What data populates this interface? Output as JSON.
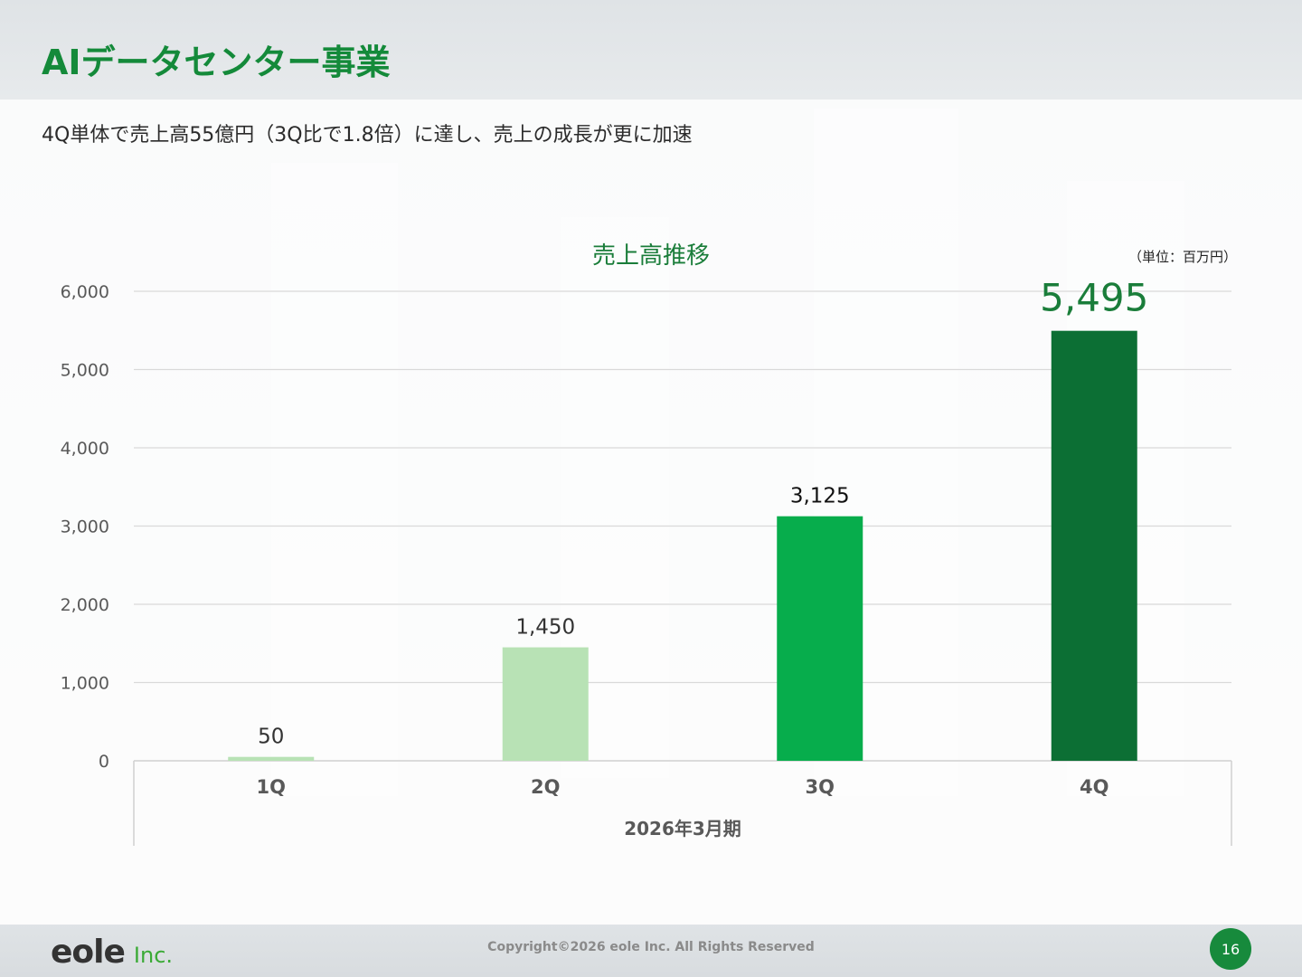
{
  "slide": {
    "title": "AIデータセンター事業",
    "subtitle": "4Q単体で売上高55億円（3Q比で1.8倍）に達し、売上の成長が更に加速",
    "page_number": "16"
  },
  "footer": {
    "logo_mark": "eole",
    "logo_suffix": "Inc.",
    "copyright": "Copyright©2026 eole Inc. All Rights Reserved"
  },
  "chart_data": {
    "type": "bar",
    "title": "売上高推移",
    "unit_note": "（単位：百万円）",
    "categories": [
      "1Q",
      "2Q",
      "3Q",
      "4Q"
    ],
    "values": [
      50,
      1450,
      3125,
      5495
    ],
    "value_labels": [
      "50",
      "1,450",
      "3,125",
      "5,495"
    ],
    "xlabel": "2026年3月期",
    "ylabel": "",
    "ylim": [
      0,
      6000
    ],
    "yticks": [
      0,
      1000,
      2000,
      3000,
      4000,
      5000,
      6000
    ],
    "ytick_labels": [
      "0",
      "1,000",
      "2,000",
      "3,000",
      "4,000",
      "5,000",
      "6,000"
    ],
    "grid": true,
    "legend": "none",
    "colors": [
      "#b8e2b5",
      "#b8e2b5",
      "#07ad4c",
      "#0c6f34"
    ],
    "label_colors": [
      "#333333",
      "#333333",
      "#111111",
      "#1a7d3a"
    ],
    "title_color": "#1a7d3a",
    "accent_color": "#148a3a"
  }
}
